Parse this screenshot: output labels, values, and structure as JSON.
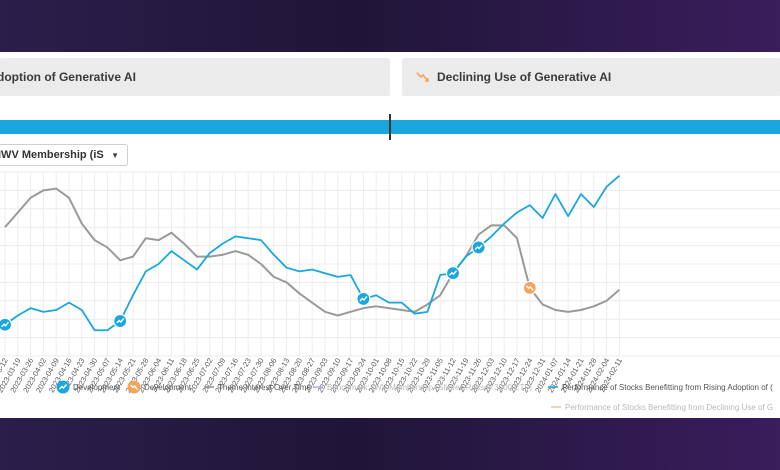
{
  "tabs": [
    {
      "label": "doption of Generative AI"
    },
    {
      "label": "Declining Use of Generative AI"
    }
  ],
  "dropdown": {
    "value": "IWV Membership (iS"
  },
  "colors": {
    "blue": "#1aa7e0",
    "gray": "#9a9a9a",
    "orange": "#f5a45c",
    "purple": "#9b8fd6"
  },
  "chart_data": {
    "type": "line",
    "x": [
      "2023-03-12",
      "2023-03-19",
      "2023-03-26",
      "2023-04-02",
      "2023-04-09",
      "2023-04-16",
      "2023-04-23",
      "2023-04-30",
      "2023-05-07",
      "2023-05-14",
      "2023-05-21",
      "2023-05-28",
      "2023-06-04",
      "2023-06-11",
      "2023-06-18",
      "2023-06-25",
      "2023-07-02",
      "2023-07-09",
      "2023-07-16",
      "2023-07-23",
      "2023-07-30",
      "2023-08-06",
      "2023-08-13",
      "2023-08-20",
      "2023-08-27",
      "2023-09-03",
      "2023-09-10",
      "2023-09-17",
      "2023-09-24",
      "2023-10-01",
      "2023-10-08",
      "2023-10-15",
      "2023-10-22",
      "2023-10-29",
      "2023-11-05",
      "2023-11-12",
      "2023-11-19",
      "2023-11-26",
      "2023-12-03",
      "2023-12-10",
      "2023-12-17",
      "2023-12-24",
      "2023-12-31",
      "2024-01-07",
      "2024-01-14",
      "2024-01-21",
      "2024-01-28",
      "2024-02-04",
      "2024-02-11"
    ],
    "tick_labels": [
      "2023-03-12",
      "2023-03-19",
      "2023-03-26",
      "2023-04-02",
      "2023-04-09",
      "2023-04-16",
      "2023-04-23",
      "2023-04-30",
      "2023-05-07",
      "2023-05-14",
      "2023-05-21",
      "2023-05-28",
      "2023-06-04",
      "2023-06-11",
      "2023-06-18",
      "2023-06-25",
      "2023-07-02",
      "2023-07-09",
      "2023-07-16",
      "2023-07-23",
      "2023-07-30",
      "2023-08-06",
      "2023-08-13",
      "2023-08-20",
      "2023-08-27",
      "2023-09-03",
      "2023-09-10",
      "2023-09-17",
      "2023-09-24",
      "2023-10-01",
      "2023-10-08",
      "2023-10-15",
      "2023-10-22",
      "2023-10-29",
      "2023-11-05",
      "2023-11-12",
      "2023-11-19",
      "2023-11-26",
      "2023-12-03",
      "2023-12-10",
      "2023-12-17",
      "2023-12-24",
      "2023-12-31",
      "2024-01-07",
      "2024-01-14",
      "2024-01-21",
      "2024-01-28",
      "2024-02-04",
      "2024-02-11"
    ],
    "ylim": [
      0,
      100
    ],
    "grid": true,
    "legend_position": "bottom",
    "series": [
      {
        "name": "Theme Interest Over Time",
        "color": "#9a9a9a",
        "values": [
          70,
          78,
          86,
          90,
          91,
          86,
          72,
          63,
          59,
          52,
          54,
          64,
          63,
          67,
          61,
          54,
          54,
          55,
          57,
          55,
          50,
          43,
          40,
          34,
          29,
          24,
          22,
          24,
          26,
          27,
          26,
          25,
          24,
          28,
          33,
          45,
          54,
          66,
          71,
          71,
          64,
          37,
          28,
          25,
          24,
          25,
          27,
          30,
          36
        ]
      },
      {
        "name": "Performance of Stocks Benefitting from Rising Adoption of (",
        "color": "#1aa7e0",
        "values": [
          17,
          22,
          26,
          24,
          25,
          29,
          25,
          14,
          14,
          19,
          33,
          46,
          50,
          57,
          52,
          47,
          56,
          61,
          65,
          64,
          63,
          55,
          48,
          46,
          47,
          45,
          43,
          44,
          31,
          33,
          29,
          29,
          23,
          24,
          44,
          45,
          54,
          59,
          65,
          72,
          78,
          82,
          75,
          88,
          76,
          88,
          81,
          92,
          98
        ]
      }
    ],
    "annotations": [
      {
        "label": "Development",
        "series": 1,
        "index": 0,
        "color": "#1aa7e0"
      },
      {
        "label": "Development",
        "series": 1,
        "index": 9,
        "color": "#1aa7e0"
      },
      {
        "label": "Development",
        "series": 1,
        "index": 28,
        "color": "#1aa7e0"
      },
      {
        "label": "Development",
        "series": 1,
        "index": 35,
        "color": "#1aa7e0"
      },
      {
        "label": "Development",
        "series": 1,
        "index": 37,
        "color": "#1aa7e0"
      },
      {
        "label": "Development",
        "series": 0,
        "index": 41,
        "color": "#f5a45c"
      }
    ],
    "legend": [
      {
        "label": "Development",
        "kind": "blue-badge"
      },
      {
        "label": "Development",
        "kind": "orange-badge"
      },
      {
        "label": "Theme Interest Over Time",
        "kind": "gray-line"
      },
      {
        "label": "Benchmark: IWV Membership (Shares Russell 3000 ETF)",
        "kind": "purple-line",
        "faded": true
      },
      {
        "label": "Performance of Stocks Benefitting from Rising Adoption of (",
        "kind": "blue-line"
      },
      {
        "label": "Performance of Stocks Benefitting from Declining Use of G",
        "kind": "orange-line",
        "faded": true
      }
    ]
  }
}
